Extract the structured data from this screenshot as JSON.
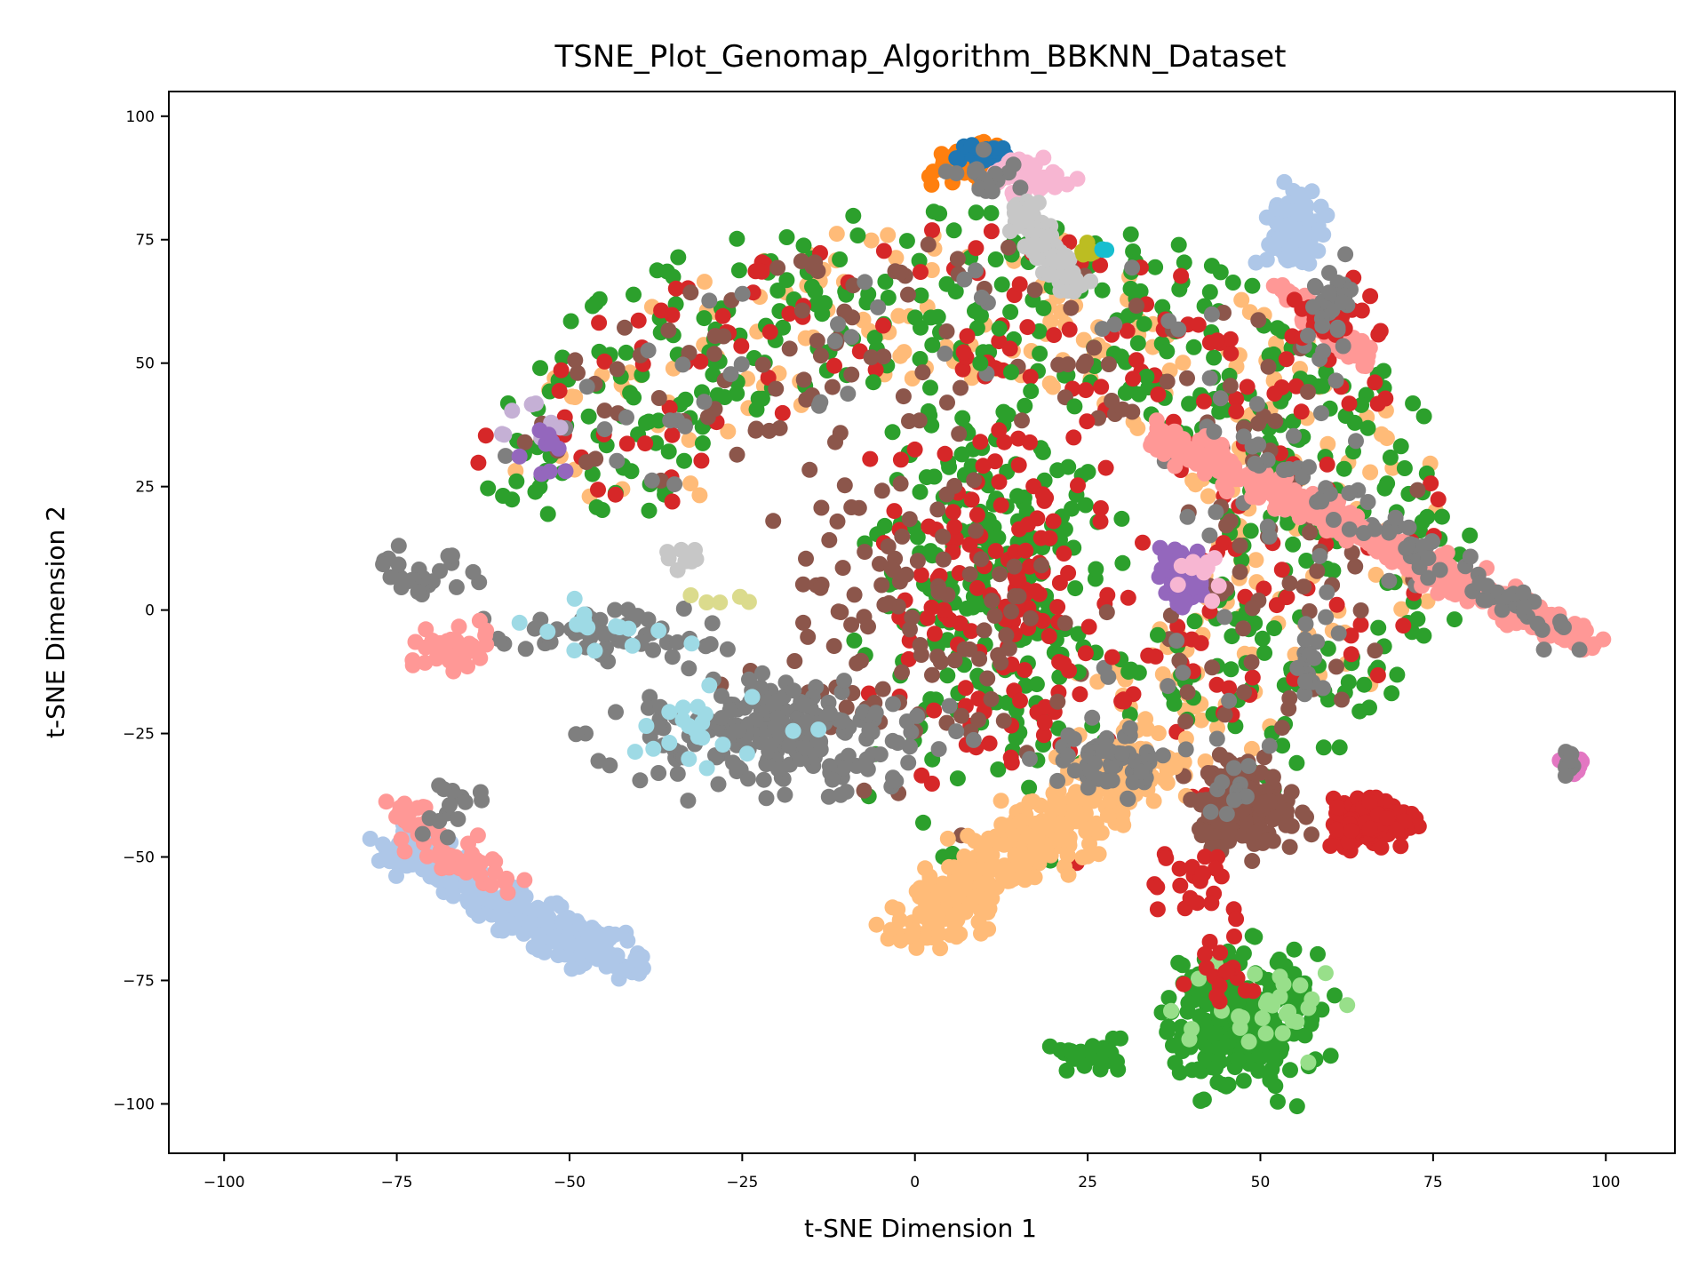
{
  "chart_data": {
    "type": "scatter",
    "title": "TSNE_Plot_Genomap_Algorithm_BBKNN_Dataset",
    "xlabel": "t-SNE Dimension 1",
    "ylabel": "t-SNE Dimension 2",
    "xlim": [
      -108,
      110
    ],
    "ylim": [
      -110,
      105
    ],
    "xticks": [
      -100,
      -75,
      -50,
      -25,
      0,
      25,
      50,
      75,
      100
    ],
    "yticks": [
      -100,
      -75,
      -50,
      -25,
      0,
      25,
      50,
      75,
      100
    ],
    "xtick_labels": [
      "−100",
      "−75",
      "−50",
      "−25",
      "0",
      "25",
      "50",
      "75",
      "100"
    ],
    "ytick_labels": [
      "−100",
      "−75",
      "−50",
      "−25",
      "0",
      "25",
      "50",
      "75",
      "100"
    ],
    "grid": false,
    "legend": "none",
    "colors": {
      "blue": "#1f77b4",
      "light_blue": "#aec7e8",
      "orange": "#ff7f0e",
      "light_orange": "#ffbb78",
      "green": "#2ca02c",
      "light_green": "#98df8a",
      "red": "#d62728",
      "salmon": "#ff9896",
      "purple": "#9467bd",
      "lavender": "#c5b0d5",
      "brown": "#8c564b",
      "pink": "#e377c2",
      "light_pink": "#f7b6d2",
      "gray": "#7f7f7f",
      "light_gray": "#c7c7c7",
      "olive": "#bcbd22",
      "khaki": "#dbdb8d",
      "cyan": "#17becf",
      "light_cyan": "#9edae5"
    },
    "clusters": [
      {
        "color": "light_orange",
        "kind": "arc",
        "cx": 5,
        "cy": 15,
        "r0": 32,
        "r1": 63,
        "a0": 170,
        "a1": -60,
        "n": 260,
        "ox": -20
      },
      {
        "color": "green",
        "kind": "arc",
        "cx": 5,
        "cy": 15,
        "r0": 35,
        "r1": 66,
        "a0": 175,
        "a1": -55,
        "n": 420,
        "ox": -20
      },
      {
        "color": "red",
        "kind": "arc",
        "cx": 5,
        "cy": 15,
        "r0": 32,
        "r1": 62,
        "a0": 170,
        "a1": -60,
        "n": 180,
        "ox": -20
      },
      {
        "color": "brown",
        "kind": "arc",
        "cx": 5,
        "cy": 15,
        "r0": 30,
        "r1": 60,
        "a0": 165,
        "a1": -60,
        "n": 160,
        "ox": -20
      },
      {
        "color": "gray",
        "kind": "arc",
        "cx": 5,
        "cy": 15,
        "r0": 30,
        "r1": 60,
        "a0": 165,
        "a1": -60,
        "n": 70,
        "ox": -20
      },
      {
        "color": "green",
        "kind": "blob",
        "cx": 12,
        "cy": 5,
        "sx": 12,
        "sy": 30,
        "n": 260
      },
      {
        "color": "red",
        "kind": "blob",
        "cx": 12,
        "cy": 5,
        "sx": 12,
        "sy": 30,
        "n": 150
      },
      {
        "color": "brown",
        "kind": "blob",
        "cx": 0,
        "cy": 0,
        "sx": 14,
        "sy": 25,
        "n": 120
      },
      {
        "color": "gray",
        "kind": "blob",
        "cx": -20,
        "cy": -25,
        "sx": 14,
        "sy": 8,
        "n": 200
      },
      {
        "color": "light_cyan",
        "kind": "blob",
        "cx": -28,
        "cy": -25,
        "sx": 10,
        "sy": 6,
        "n": 22
      },
      {
        "color": "gray",
        "kind": "blob",
        "cx": -45,
        "cy": -5,
        "sx": 10,
        "sy": 4,
        "n": 50
      },
      {
        "color": "light_cyan",
        "kind": "blob",
        "cx": -45,
        "cy": -3,
        "sx": 10,
        "sy": 4,
        "n": 16
      },
      {
        "color": "salmon",
        "kind": "blob",
        "cx": -68,
        "cy": -8,
        "sx": 5,
        "sy": 3,
        "n": 45
      },
      {
        "color": "gray",
        "kind": "blob",
        "cx": -70,
        "cy": 8,
        "sx": 6,
        "sy": 3,
        "n": 25
      },
      {
        "color": "light_blue",
        "kind": "line",
        "x0": -75,
        "y0": -48,
        "x1": -42,
        "y1": -72,
        "spread": 5,
        "n": 320
      },
      {
        "color": "salmon",
        "kind": "line",
        "x0": -75,
        "y0": -40,
        "x1": -57,
        "y1": -58,
        "spread": 4,
        "n": 55
      },
      {
        "color": "gray",
        "kind": "blob",
        "cx": -68,
        "cy": -40,
        "sx": 5,
        "sy": 5,
        "n": 14
      },
      {
        "color": "light_orange",
        "kind": "line",
        "x0": 0,
        "y0": -65,
        "x1": 35,
        "y1": -28,
        "spread": 8,
        "n": 420
      },
      {
        "color": "gray",
        "kind": "blob",
        "cx": 28,
        "cy": -30,
        "sx": 6,
        "sy": 5,
        "n": 55
      },
      {
        "color": "brown",
        "kind": "blob",
        "cx": 48,
        "cy": -40,
        "sx": 5,
        "sy": 6,
        "n": 160
      },
      {
        "color": "gray",
        "kind": "blob",
        "cx": 46,
        "cy": -36,
        "sx": 3,
        "sy": 5,
        "n": 14
      },
      {
        "color": "red",
        "kind": "blob",
        "cx": 40,
        "cy": -55,
        "sx": 4,
        "sy": 5,
        "n": 22
      },
      {
        "color": "red",
        "kind": "blob",
        "cx": 66,
        "cy": -43,
        "sx": 4,
        "sy": 3,
        "n": 200
      },
      {
        "color": "green",
        "kind": "blob",
        "cx": 47,
        "cy": -83,
        "sx": 7,
        "sy": 9,
        "n": 260
      },
      {
        "color": "light_green",
        "kind": "blob",
        "cx": 50,
        "cy": -80,
        "sx": 8,
        "sy": 8,
        "n": 30
      },
      {
        "color": "red",
        "kind": "blob",
        "cx": 44,
        "cy": -72,
        "sx": 4,
        "sy": 6,
        "n": 20
      },
      {
        "color": "green",
        "kind": "blob",
        "cx": 25,
        "cy": -90,
        "sx": 4,
        "sy": 2,
        "n": 30
      },
      {
        "color": "salmon",
        "kind": "line",
        "x0": 36,
        "y0": 35,
        "x1": 98,
        "y1": -7,
        "spread": 3.5,
        "n": 420
      },
      {
        "color": "gray",
        "kind": "line",
        "x0": 45,
        "y0": 35,
        "x1": 95,
        "y1": -5,
        "spread": 4,
        "n": 70
      },
      {
        "color": "purple",
        "kind": "blob",
        "cx": 39,
        "cy": 7,
        "sx": 2,
        "sy": 4,
        "n": 110
      },
      {
        "color": "light_pink",
        "kind": "blob",
        "cx": 41,
        "cy": 8,
        "sx": 2,
        "sy": 3,
        "n": 10
      },
      {
        "color": "gray",
        "kind": "blob",
        "cx": 57,
        "cy": -12,
        "sx": 1.5,
        "sy": 5,
        "n": 16
      },
      {
        "color": "light_blue",
        "kind": "blob",
        "cx": 55,
        "cy": 77,
        "sx": 3,
        "sy": 5,
        "n": 90
      },
      {
        "color": "salmon",
        "kind": "line",
        "x0": 53,
        "y0": 65,
        "x1": 66,
        "y1": 50,
        "spread": 2.5,
        "n": 80
      },
      {
        "color": "red",
        "kind": "blob",
        "cx": 60,
        "cy": 60,
        "sx": 4,
        "sy": 5,
        "n": 30
      },
      {
        "color": "gray",
        "kind": "blob",
        "cx": 60,
        "cy": 60,
        "sx": 3,
        "sy": 8,
        "n": 26
      },
      {
        "color": "orange",
        "kind": "blob",
        "cx": 8,
        "cy": 90,
        "sx": 4,
        "sy": 3,
        "n": 70
      },
      {
        "color": "blue",
        "kind": "blob",
        "cx": 10,
        "cy": 92,
        "sx": 4,
        "sy": 2,
        "n": 20
      },
      {
        "color": "light_pink",
        "kind": "blob",
        "cx": 16,
        "cy": 88,
        "sx": 4,
        "sy": 3,
        "n": 40
      },
      {
        "color": "gray",
        "kind": "blob",
        "cx": 10,
        "cy": 88,
        "sx": 4,
        "sy": 3,
        "n": 20
      },
      {
        "color": "light_gray",
        "kind": "line",
        "x0": 15,
        "y0": 82,
        "x1": 23,
        "y1": 65,
        "spread": 2.5,
        "n": 110
      },
      {
        "color": "olive",
        "kind": "blob",
        "cx": 25,
        "cy": 72,
        "sx": 1.5,
        "sy": 2,
        "n": 5
      },
      {
        "color": "cyan",
        "kind": "blob",
        "cx": 27,
        "cy": 73,
        "sx": 0.5,
        "sy": 0.5,
        "n": 3
      },
      {
        "color": "light_gray",
        "kind": "blob",
        "cx": -34,
        "cy": 10,
        "sx": 3,
        "sy": 2,
        "n": 10
      },
      {
        "color": "pink",
        "kind": "blob",
        "cx": 95,
        "cy": -31,
        "sx": 1,
        "sy": 1.5,
        "n": 22
      },
      {
        "color": "gray",
        "kind": "blob",
        "cx": 94,
        "cy": -31,
        "sx": 1,
        "sy": 1.5,
        "n": 10
      },
      {
        "color": "khaki",
        "kind": "blob",
        "cx": -30,
        "cy": 4,
        "sx": 4,
        "sy": 3,
        "n": 5
      },
      {
        "color": "lavender",
        "kind": "blob",
        "cx": -55,
        "cy": 36,
        "sx": 6,
        "sy": 4,
        "n": 8
      },
      {
        "color": "purple",
        "kind": "blob",
        "cx": -52,
        "cy": 32,
        "sx": 4,
        "sy": 4,
        "n": 10
      }
    ]
  }
}
